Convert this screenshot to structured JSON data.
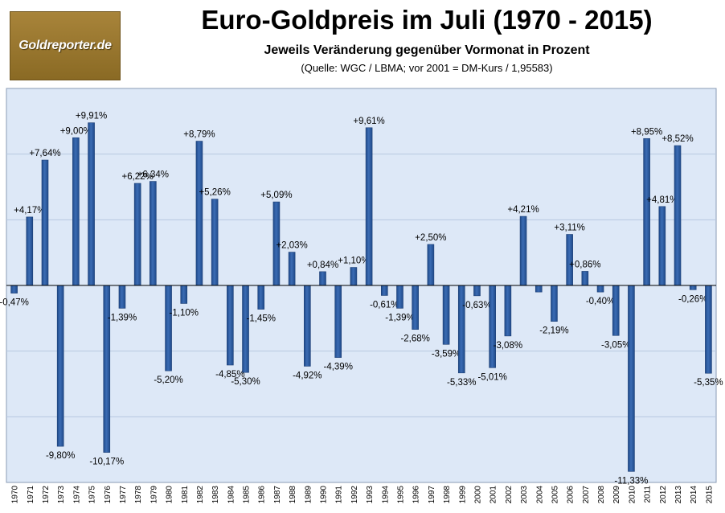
{
  "logo": {
    "text": "Goldreporter.de"
  },
  "header": {
    "title": "Euro-Goldpreis im Juli (1970 - 2015)",
    "subtitle": "Jeweils Veränderung gegenüber Vormonat in Prozent",
    "source": "(Quelle: WGC / LBMA; vor 2001 = DM-Kurs / 1,95583)"
  },
  "colors": {
    "bar": "#3b6cb4",
    "bar_dark": "#1f4a8a",
    "plot_bg": "#dde8f7",
    "grid": "#b7c8e0"
  },
  "chart_data": {
    "type": "bar",
    "categories": [
      "1970",
      "1971",
      "1972",
      "1973",
      "1974",
      "1975",
      "1976",
      "1977",
      "1978",
      "1979",
      "1980",
      "1981",
      "1982",
      "1983",
      "1984",
      "1985",
      "1986",
      "1987",
      "1988",
      "1989",
      "1990",
      "1991",
      "1992",
      "1993",
      "1994",
      "1995",
      "1996",
      "1997",
      "1998",
      "1999",
      "2000",
      "2001",
      "2002",
      "2003",
      "2004",
      "2005",
      "2006",
      "2007",
      "2008",
      "2009",
      "2010",
      "2011",
      "2012",
      "2013",
      "2014",
      "2015"
    ],
    "values": [
      -0.47,
      4.17,
      7.64,
      -9.8,
      9.0,
      9.91,
      -10.17,
      -1.39,
      6.22,
      6.34,
      -5.2,
      -1.1,
      8.79,
      5.26,
      -4.85,
      -5.3,
      -1.45,
      5.09,
      2.03,
      -4.92,
      0.84,
      -4.39,
      1.1,
      9.61,
      -0.61,
      -1.39,
      -2.68,
      2.5,
      -3.59,
      -5.33,
      -0.63,
      -5.01,
      -3.08,
      4.21,
      -0.4,
      -2.19,
      3.11,
      0.86,
      -0.4,
      -3.05,
      -11.33,
      8.95,
      4.81,
      8.52,
      -0.26,
      -5.35
    ],
    "labels": [
      "-0,47%",
      "+4,17%",
      "+7,64%",
      "-9,80%",
      "+9,00%",
      "+9,91%",
      "-10,17%",
      "-1,39%",
      "+6,22%",
      "+6,34%",
      "-5,20%",
      "-1,10%",
      "+8,79%",
      "+5,26%",
      "-4,85%",
      "-5,30%",
      "-1,45%",
      "+5,09%",
      "+2,03%",
      "-4,92%",
      "+0,84%",
      "-4,39%",
      "+1,10%",
      "+9,61%",
      "-0,61%",
      "-1,39%",
      "-2,68%",
      "+2,50%",
      "-3,59%",
      "-5,33%",
      "-0,63%",
      "-5,01%",
      "-3,08%",
      "+4,21%",
      "",
      "-2,19%",
      "+3,11%",
      "+0,86%",
      "-0,40%",
      "-3,05%",
      "-11,33%",
      "+8,95%",
      "+4,81%",
      "+8,52%",
      "-0,26%",
      "-5,35%"
    ],
    "ylim": [
      -12,
      12
    ],
    "grid": true,
    "legend": "none"
  }
}
